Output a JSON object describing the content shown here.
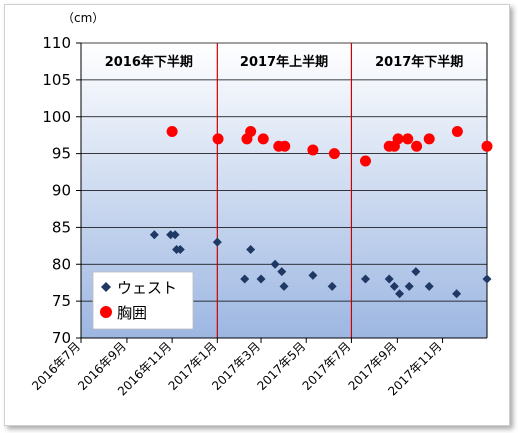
{
  "chart_data": {
    "type": "scatter",
    "unit_label": "（cm）",
    "ylim": [
      70,
      110
    ],
    "y_ticks": [
      70,
      75,
      80,
      85,
      90,
      95,
      100,
      105,
      110
    ],
    "x_start": "2016-07-01",
    "x_end": "2017-12-31",
    "x_ticks": [
      {
        "date": "2016-07-01",
        "label": "2016年7月"
      },
      {
        "date": "2016-09-01",
        "label": "2016年9月"
      },
      {
        "date": "2016-11-01",
        "label": "2016年11月"
      },
      {
        "date": "2017-01-01",
        "label": "2017年1月"
      },
      {
        "date": "2017-03-01",
        "label": "2017年3月"
      },
      {
        "date": "2017-05-01",
        "label": "2017年5月"
      },
      {
        "date": "2017-07-01",
        "label": "2017年7月"
      },
      {
        "date": "2017-09-01",
        "label": "2017年9月"
      },
      {
        "date": "2017-11-01",
        "label": "2017年11月"
      }
    ],
    "periods": [
      {
        "label": "2016年下半期",
        "start": "2016-07-01",
        "end": "2016-12-31"
      },
      {
        "label": "2017年上半期",
        "start": "2017-01-01",
        "end": "2017-06-30"
      },
      {
        "label": "2017年下半期",
        "start": "2017-07-01",
        "end": "2017-12-31"
      }
    ],
    "dividers": [
      "2017-01-01",
      "2017-07-01"
    ],
    "legend_placement": "bottom-left",
    "series": [
      {
        "name": "ウェスト",
        "marker": "diamond",
        "color": "#1f3864",
        "points": [
          {
            "x": "2016-10-08",
            "y": 84
          },
          {
            "x": "2016-10-30",
            "y": 84
          },
          {
            "x": "2016-11-05",
            "y": 84
          },
          {
            "x": "2016-11-07",
            "y": 82
          },
          {
            "x": "2016-11-12",
            "y": 82
          },
          {
            "x": "2017-01-01",
            "y": 83
          },
          {
            "x": "2017-02-07",
            "y": 78
          },
          {
            "x": "2017-02-15",
            "y": 82
          },
          {
            "x": "2017-03-01",
            "y": 78
          },
          {
            "x": "2017-03-20",
            "y": 80
          },
          {
            "x": "2017-03-29",
            "y": 79
          },
          {
            "x": "2017-04-01",
            "y": 77
          },
          {
            "x": "2017-05-10",
            "y": 78.5
          },
          {
            "x": "2017-06-05",
            "y": 77
          },
          {
            "x": "2017-07-20",
            "y": 78
          },
          {
            "x": "2017-08-21",
            "y": 78
          },
          {
            "x": "2017-08-28",
            "y": 77
          },
          {
            "x": "2017-09-04",
            "y": 76
          },
          {
            "x": "2017-09-17",
            "y": 77
          },
          {
            "x": "2017-09-26",
            "y": 79
          },
          {
            "x": "2017-10-14",
            "y": 77
          },
          {
            "x": "2017-11-20",
            "y": 76
          },
          {
            "x": "2017-12-31",
            "y": 78
          }
        ]
      },
      {
        "name": "胸囲",
        "marker": "circle",
        "color": "#ff0000",
        "points": [
          {
            "x": "2016-11-01",
            "y": 98
          },
          {
            "x": "2017-01-02",
            "y": 97
          },
          {
            "x": "2017-02-10",
            "y": 97
          },
          {
            "x": "2017-02-15",
            "y": 98
          },
          {
            "x": "2017-03-04",
            "y": 97
          },
          {
            "x": "2017-03-25",
            "y": 96
          },
          {
            "x": "2017-04-02",
            "y": 96
          },
          {
            "x": "2017-05-10",
            "y": 95.5
          },
          {
            "x": "2017-06-08",
            "y": 95
          },
          {
            "x": "2017-07-20",
            "y": 94
          },
          {
            "x": "2017-08-21",
            "y": 96
          },
          {
            "x": "2017-08-28",
            "y": 96
          },
          {
            "x": "2017-09-02",
            "y": 97
          },
          {
            "x": "2017-09-15",
            "y": 97
          },
          {
            "x": "2017-09-27",
            "y": 96
          },
          {
            "x": "2017-10-14",
            "y": 97
          },
          {
            "x": "2017-11-21",
            "y": 98
          },
          {
            "x": "2017-12-31",
            "y": 96
          }
        ]
      }
    ]
  }
}
